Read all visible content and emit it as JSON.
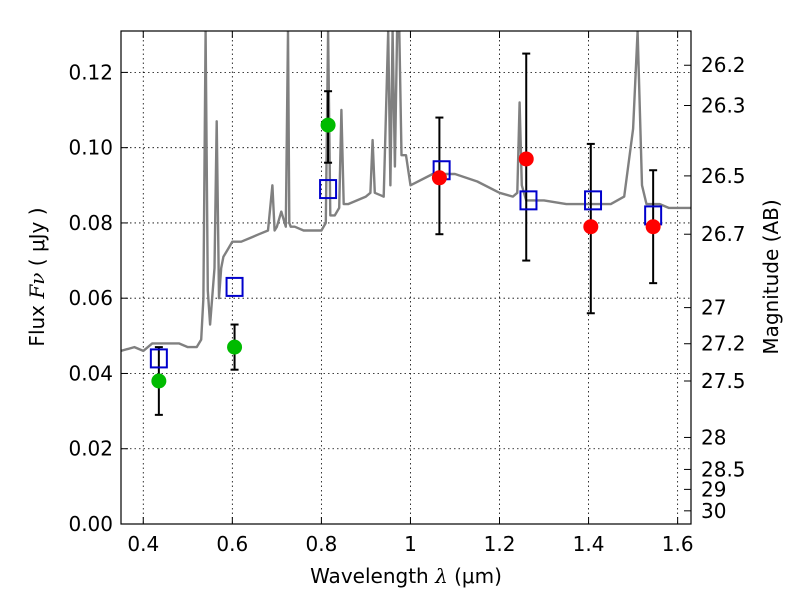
{
  "chart_data": {
    "type": "scatter",
    "title": "",
    "xlabel": {
      "prefix": "Wavelength  ",
      "symbol": "λ",
      "suffix": " (μm)"
    },
    "ylabel": {
      "prefix": "Flux  ",
      "symbol": "Fν",
      "suffix": "  ( μJy )"
    },
    "y2label": "Magnitude (AB)",
    "xlim": [
      0.35,
      1.63
    ],
    "ylim": [
      0.0,
      0.131
    ],
    "grid": true,
    "x_ticks": [
      {
        "value": 0.4,
        "label": "0.4"
      },
      {
        "value": 0.6,
        "label": "0.6"
      },
      {
        "value": 0.8,
        "label": "0.8"
      },
      {
        "value": 1.0,
        "label": "1"
      },
      {
        "value": 1.2,
        "label": "1.2"
      },
      {
        "value": 1.4,
        "label": "1.4"
      },
      {
        "value": 1.6,
        "label": "1.6"
      }
    ],
    "y_ticks": [
      {
        "value": 0.0,
        "label": "0.00"
      },
      {
        "value": 0.02,
        "label": "0.02"
      },
      {
        "value": 0.04,
        "label": "0.04"
      },
      {
        "value": 0.06,
        "label": "0.06"
      },
      {
        "value": 0.08,
        "label": "0.08"
      },
      {
        "value": 0.1,
        "label": "0.10"
      },
      {
        "value": 0.12,
        "label": "0.12"
      }
    ],
    "y2_ticks": [
      {
        "flux": 0.1219,
        "label": "26.2"
      },
      {
        "flux": 0.1112,
        "label": "26.3"
      },
      {
        "flux": 0.0925,
        "label": "26.5"
      },
      {
        "flux": 0.077,
        "label": "26.7"
      },
      {
        "flux": 0.0575,
        "label": "27"
      },
      {
        "flux": 0.0479,
        "label": "27.2"
      },
      {
        "flux": 0.038,
        "label": "27.5"
      },
      {
        "flux": 0.023,
        "label": "28"
      },
      {
        "flux": 0.0145,
        "label": "28.5"
      },
      {
        "flux": 0.0092,
        "label": "29"
      },
      {
        "flux": 0.0035,
        "label": "30"
      }
    ],
    "series": [
      {
        "kind": "spectrum",
        "color": "#808080",
        "x": [
          0.35,
          0.38,
          0.4,
          0.42,
          0.44,
          0.46,
          0.48,
          0.5,
          0.52,
          0.53,
          0.535,
          0.54,
          0.545,
          0.55,
          0.56,
          0.565,
          0.57,
          0.575,
          0.58,
          0.59,
          0.6,
          0.61,
          0.62,
          0.64,
          0.66,
          0.68,
          0.69,
          0.695,
          0.7,
          0.71,
          0.72,
          0.725,
          0.728,
          0.731,
          0.735,
          0.74,
          0.76,
          0.78,
          0.8,
          0.81,
          0.815,
          0.82,
          0.83,
          0.84,
          0.845,
          0.85,
          0.86,
          0.88,
          0.9,
          0.91,
          0.915,
          0.92,
          0.94,
          0.95,
          0.955,
          0.96,
          0.965,
          0.97,
          0.975,
          0.98,
          0.99,
          1.0,
          1.05,
          1.1,
          1.15,
          1.2,
          1.23,
          1.24,
          1.245,
          1.25,
          1.26,
          1.3,
          1.35,
          1.4,
          1.45,
          1.48,
          1.5,
          1.51,
          1.52,
          1.53,
          1.54,
          1.56,
          1.58,
          1.6,
          1.63
        ],
        "y": [
          0.046,
          0.047,
          0.046,
          0.048,
          0.048,
          0.048,
          0.048,
          0.047,
          0.047,
          0.049,
          0.06,
          0.131,
          0.062,
          0.053,
          0.068,
          0.107,
          0.06,
          0.068,
          0.071,
          0.073,
          0.075,
          0.075,
          0.075,
          0.076,
          0.077,
          0.078,
          0.09,
          0.078,
          0.079,
          0.083,
          0.079,
          0.131,
          0.08,
          0.079,
          0.079,
          0.079,
          0.078,
          0.078,
          0.078,
          0.08,
          0.131,
          0.082,
          0.082,
          0.084,
          0.11,
          0.085,
          0.085,
          0.086,
          0.087,
          0.088,
          0.102,
          0.088,
          0.087,
          0.131,
          0.09,
          0.131,
          0.095,
          0.131,
          0.131,
          0.098,
          0.098,
          0.09,
          0.093,
          0.093,
          0.091,
          0.088,
          0.087,
          0.088,
          0.112,
          0.09,
          0.086,
          0.086,
          0.085,
          0.085,
          0.085,
          0.087,
          0.105,
          0.131,
          0.09,
          0.085,
          0.085,
          0.085,
          0.084,
          0.084,
          0.084
        ]
      },
      {
        "kind": "model_points",
        "marker": "square",
        "color": "#0000cc",
        "x": [
          0.435,
          0.605,
          0.815,
          1.07,
          1.265,
          1.41,
          1.545
        ],
        "y": [
          0.044,
          0.063,
          0.089,
          0.094,
          0.086,
          0.086,
          0.082
        ]
      },
      {
        "kind": "observed",
        "marker": "circle",
        "color": "#00bb00",
        "x": [
          0.435,
          0.605,
          0.815
        ],
        "y": [
          0.038,
          0.047,
          0.106
        ],
        "yerr_low": [
          0.029,
          0.041,
          0.096
        ],
        "yerr_high": [
          0.047,
          0.053,
          0.115
        ]
      },
      {
        "kind": "observed",
        "marker": "circle",
        "color": "#ff0000",
        "x": [
          1.065,
          1.26,
          1.405,
          1.545
        ],
        "y": [
          0.092,
          0.097,
          0.079,
          0.079
        ],
        "yerr_low": [
          0.077,
          0.07,
          0.056,
          0.064
        ],
        "yerr_high": [
          0.108,
          0.125,
          0.101,
          0.094
        ]
      }
    ]
  }
}
